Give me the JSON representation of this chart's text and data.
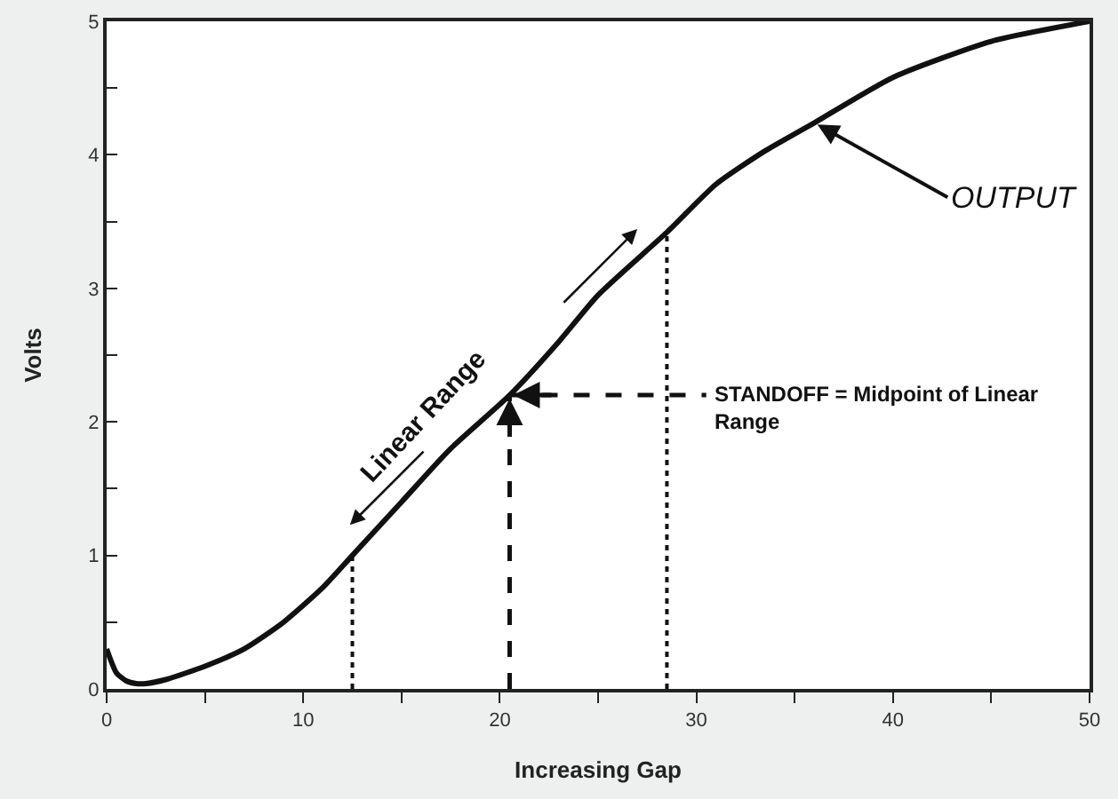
{
  "chart_data": {
    "type": "line",
    "xlabel": "Increasing Gap",
    "ylabel": "Volts",
    "x": [
      0,
      0.5,
      1,
      1.5,
      2,
      3,
      5,
      7,
      9,
      11,
      12.5,
      15,
      17.5,
      20.5,
      23,
      25,
      28.5,
      31,
      33.5,
      36,
      40,
      45,
      50
    ],
    "series": [
      {
        "color": "#111111",
        "values": [
          0.3,
          0.12,
          0.06,
          0.04,
          0.04,
          0.07,
          0.17,
          0.3,
          0.5,
          0.76,
          1.0,
          1.4,
          1.8,
          2.2,
          2.6,
          2.95,
          3.42,
          3.78,
          4.03,
          4.24,
          4.58,
          4.85,
          5.0
        ]
      }
    ],
    "xlim": [
      0,
      50
    ],
    "ylim": [
      0,
      5
    ],
    "xticks": [
      0,
      {
        "value": 5,
        "label": null
      },
      10,
      {
        "value": 15,
        "label": null
      },
      20,
      {
        "value": 25,
        "label": null
      },
      30,
      {
        "value": 35,
        "label": null
      },
      40,
      {
        "value": 45,
        "label": null
      },
      50
    ],
    "yticks": [
      0,
      {
        "value": 0.5,
        "label": null
      },
      1,
      {
        "value": 1.5,
        "label": null
      },
      2,
      {
        "value": 2.5,
        "label": null
      },
      3,
      {
        "value": 3.5,
        "label": null
      },
      4,
      {
        "value": 4.5,
        "label": null
      },
      5
    ],
    "grid": false,
    "marker": "none",
    "line_style": "solid",
    "ref_lines": [
      {
        "axis": "x",
        "value": 12.5,
        "line_style": "dotted",
        "color": "#111111"
      },
      {
        "axis": "x",
        "value": 28.5,
        "line_style": "dotted",
        "color": "#111111"
      },
      {
        "axis": "x",
        "value": 20.5,
        "line_style": "dashed",
        "color": "#111111"
      },
      {
        "axis": "y",
        "value": 2.2,
        "line_style": "dashed",
        "color": "#111111"
      }
    ],
    "annotations": [
      {
        "text": "Linear Range",
        "x": 17.5,
        "y": 1.8
      },
      "STANDOFF = Midpoint of Linear Range",
      {
        "text": "OUTPUT",
        "x": 36,
        "y": 4.24
      }
    ]
  }
}
